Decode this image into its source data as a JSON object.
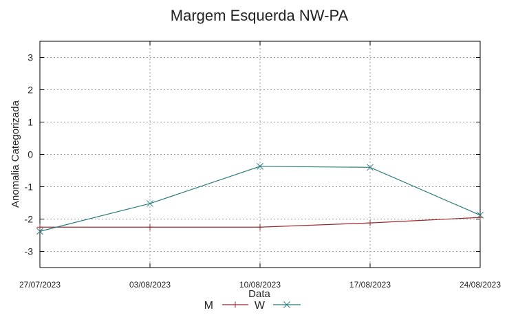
{
  "chart_data": {
    "type": "line",
    "title": "Margem Esquerda NW-PA",
    "xlabel": "Data",
    "ylabel": "Anomalia Categorizada",
    "categories": [
      "27/07/2023",
      "03/08/2023",
      "10/08/2023",
      "17/08/2023",
      "24/08/2023"
    ],
    "ylim": [
      -3.5,
      3.5
    ],
    "yticks": [
      3,
      2,
      1,
      0,
      -1,
      -2,
      -3
    ],
    "grid": true,
    "legend": "bottom-center",
    "series": [
      {
        "name": "M",
        "color": "#a0282d",
        "marker": "plus",
        "values": [
          -2.25,
          -2.25,
          -2.25,
          -2.12,
          -1.95
        ]
      },
      {
        "name": "W",
        "color": "#2a7b7b",
        "marker": "cross",
        "values": [
          -2.38,
          -1.52,
          -0.37,
          -0.4,
          -1.88
        ]
      }
    ]
  }
}
